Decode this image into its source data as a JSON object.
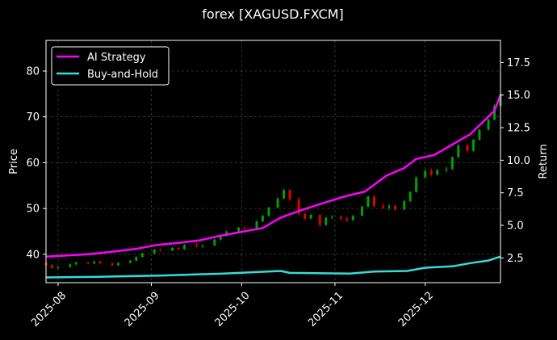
{
  "chart_data": {
    "type": "line",
    "title": "forex [XAGUSD.FXCM]",
    "xlabel": "",
    "ylabel_left": "Price",
    "ylabel_right": "Return",
    "x_ticks": [
      "2025-08",
      "2025-09",
      "2025-10",
      "2025-11",
      "2025-12"
    ],
    "x_range": [
      "2025-07-28",
      "2025-12-26"
    ],
    "ylim_left": [
      33.8,
      86.7
    ],
    "yticks_left": [
      "40",
      "50",
      "60",
      "70",
      "80"
    ],
    "ylim_right": [
      0.6,
      19.2
    ],
    "yticks_right": [
      "2.5",
      "5.0",
      "7.5",
      "10.0",
      "12.5",
      "15.0",
      "17.5"
    ],
    "grid": true,
    "legend_position": "top-left",
    "colors": {
      "background": "#000000",
      "up_candle": "#00a000",
      "down_candle": "#e00000",
      "ai_strategy": "#ff00ff",
      "buy_and_hold": "#33dddd",
      "grid": "#555555",
      "text": "#ffffff"
    },
    "series": [
      {
        "name": "AI Strategy",
        "axis": "right",
        "points": [
          [
            "2025-07-28",
            2.6
          ],
          [
            "2025-08-05",
            2.7
          ],
          [
            "2025-08-12",
            2.8
          ],
          [
            "2025-08-20",
            3.0
          ],
          [
            "2025-08-27",
            3.2
          ],
          [
            "2025-09-03",
            3.5
          ],
          [
            "2025-09-10",
            3.65
          ],
          [
            "2025-09-17",
            3.85
          ],
          [
            "2025-09-24",
            4.2
          ],
          [
            "2025-10-01",
            4.5
          ],
          [
            "2025-10-08",
            4.8
          ],
          [
            "2025-10-14",
            5.6
          ],
          [
            "2025-10-20",
            6.1
          ],
          [
            "2025-10-28",
            6.7
          ],
          [
            "2025-11-04",
            7.2
          ],
          [
            "2025-11-11",
            7.6
          ],
          [
            "2025-11-18",
            8.8
          ],
          [
            "2025-11-24",
            9.4
          ],
          [
            "2025-11-28",
            10.1
          ],
          [
            "2025-12-04",
            10.4
          ],
          [
            "2025-12-10",
            11.2
          ],
          [
            "2025-12-16",
            12.0
          ],
          [
            "2025-12-20",
            12.9
          ],
          [
            "2025-12-24",
            13.8
          ],
          [
            "2025-12-26",
            15.0
          ]
        ]
      },
      {
        "name": "Buy-and-Hold",
        "axis": "right",
        "points": [
          [
            "2025-07-28",
            1.0
          ],
          [
            "2025-08-15",
            1.05
          ],
          [
            "2025-09-05",
            1.15
          ],
          [
            "2025-09-25",
            1.3
          ],
          [
            "2025-10-14",
            1.5
          ],
          [
            "2025-10-17",
            1.35
          ],
          [
            "2025-11-06",
            1.3
          ],
          [
            "2025-11-14",
            1.45
          ],
          [
            "2025-11-25",
            1.5
          ],
          [
            "2025-12-01",
            1.75
          ],
          [
            "2025-12-10",
            1.85
          ],
          [
            "2025-12-16",
            2.1
          ],
          [
            "2025-12-22",
            2.3
          ],
          [
            "2025-12-26",
            2.6
          ]
        ]
      }
    ],
    "candles": [
      [
        "2025-07-28",
        38.2,
        38.4,
        37.4,
        37.6
      ],
      [
        "2025-07-30",
        37.6,
        37.9,
        36.9,
        37.0
      ],
      [
        "2025-08-01",
        37.0,
        37.4,
        36.7,
        37.2
      ],
      [
        "2025-08-05",
        37.2,
        38.0,
        37.1,
        37.8
      ],
      [
        "2025-08-07",
        37.8,
        38.4,
        37.6,
        38.2
      ],
      [
        "2025-08-11",
        38.2,
        38.4,
        37.8,
        38.0
      ],
      [
        "2025-08-13",
        38.0,
        38.6,
        37.8,
        38.4
      ],
      [
        "2025-08-15",
        38.4,
        38.6,
        37.9,
        38.0
      ],
      [
        "2025-08-19",
        38.0,
        38.2,
        37.5,
        37.6
      ],
      [
        "2025-08-21",
        37.6,
        38.2,
        37.5,
        38.1
      ],
      [
        "2025-08-25",
        38.1,
        38.8,
        38.0,
        38.6
      ],
      [
        "2025-08-27",
        38.6,
        39.6,
        38.5,
        39.4
      ],
      [
        "2025-08-29",
        39.4,
        40.4,
        39.3,
        40.2
      ],
      [
        "2025-09-02",
        40.2,
        41.2,
        40.1,
        41.0
      ],
      [
        "2025-09-04",
        41.0,
        41.3,
        40.6,
        40.8
      ],
      [
        "2025-09-08",
        40.8,
        41.6,
        40.7,
        41.4
      ],
      [
        "2025-09-10",
        41.4,
        41.6,
        40.9,
        41.1
      ],
      [
        "2025-09-12",
        41.1,
        42.2,
        41.0,
        42.0
      ],
      [
        "2025-09-16",
        42.0,
        42.5,
        41.5,
        41.7
      ],
      [
        "2025-09-18",
        41.7,
        42.1,
        41.4,
        41.9
      ],
      [
        "2025-09-22",
        41.9,
        43.4,
        41.8,
        43.2
      ],
      [
        "2025-09-24",
        43.2,
        44.2,
        43.0,
        44.0
      ],
      [
        "2025-09-26",
        44.0,
        45.2,
        43.9,
        45.0
      ],
      [
        "2025-09-30",
        45.0,
        46.0,
        44.8,
        45.8
      ],
      [
        "2025-10-02",
        45.8,
        46.2,
        45.4,
        45.6
      ],
      [
        "2025-10-06",
        45.6,
        47.4,
        45.5,
        47.2
      ],
      [
        "2025-10-08",
        47.2,
        48.6,
        47.0,
        48.4
      ],
      [
        "2025-10-10",
        48.4,
        50.4,
        48.2,
        50.2
      ],
      [
        "2025-10-13",
        50.2,
        52.4,
        50.0,
        52.2
      ],
      [
        "2025-10-15",
        52.2,
        54.4,
        52.0,
        54.0
      ],
      [
        "2025-10-17",
        54.0,
        54.2,
        51.6,
        52.0
      ],
      [
        "2025-10-20",
        52.0,
        52.6,
        48.4,
        48.8
      ],
      [
        "2025-10-22",
        48.8,
        49.2,
        47.4,
        47.8
      ],
      [
        "2025-10-24",
        47.8,
        48.8,
        47.6,
        48.6
      ],
      [
        "2025-10-27",
        48.6,
        48.8,
        46.0,
        46.4
      ],
      [
        "2025-10-29",
        46.4,
        48.2,
        46.2,
        48.0
      ],
      [
        "2025-10-31",
        48.0,
        48.6,
        47.6,
        48.2
      ],
      [
        "2025-11-03",
        48.2,
        48.4,
        47.4,
        47.8
      ],
      [
        "2025-11-05",
        47.8,
        48.2,
        47.0,
        47.4
      ],
      [
        "2025-11-07",
        47.4,
        48.6,
        47.3,
        48.4
      ],
      [
        "2025-11-10",
        48.4,
        50.6,
        48.3,
        50.4
      ],
      [
        "2025-11-12",
        50.4,
        52.8,
        50.2,
        52.6
      ],
      [
        "2025-11-14",
        52.6,
        53.0,
        50.2,
        50.6
      ],
      [
        "2025-11-17",
        50.6,
        51.2,
        49.8,
        50.2
      ],
      [
        "2025-11-19",
        50.2,
        51.0,
        49.6,
        50.6
      ],
      [
        "2025-11-21",
        50.6,
        50.8,
        49.4,
        49.8
      ],
      [
        "2025-11-24",
        49.8,
        51.8,
        49.6,
        51.6
      ],
      [
        "2025-11-26",
        51.6,
        53.8,
        51.4,
        53.6
      ],
      [
        "2025-11-28",
        53.6,
        57.0,
        53.4,
        56.8
      ],
      [
        "2025-12-01",
        56.8,
        58.6,
        56.4,
        58.2
      ],
      [
        "2025-12-03",
        58.2,
        58.8,
        57.0,
        57.4
      ],
      [
        "2025-12-05",
        57.4,
        58.6,
        57.2,
        58.4
      ],
      [
        "2025-12-08",
        58.4,
        59.2,
        57.8,
        58.6
      ],
      [
        "2025-12-10",
        58.6,
        61.4,
        58.4,
        61.2
      ],
      [
        "2025-12-12",
        61.2,
        64.0,
        61.0,
        63.8
      ],
      [
        "2025-12-15",
        63.8,
        64.2,
        62.2,
        62.6
      ],
      [
        "2025-12-17",
        62.6,
        65.2,
        62.4,
        65.0
      ],
      [
        "2025-12-19",
        65.0,
        67.4,
        64.8,
        67.2
      ],
      [
        "2025-12-22",
        67.2,
        69.6,
        67.0,
        69.4
      ],
      [
        "2025-12-24",
        69.4,
        72.8,
        69.2,
        72.4
      ],
      [
        "2025-12-26",
        72.4,
        75.4,
        72.2,
        75.0
      ]
    ]
  }
}
